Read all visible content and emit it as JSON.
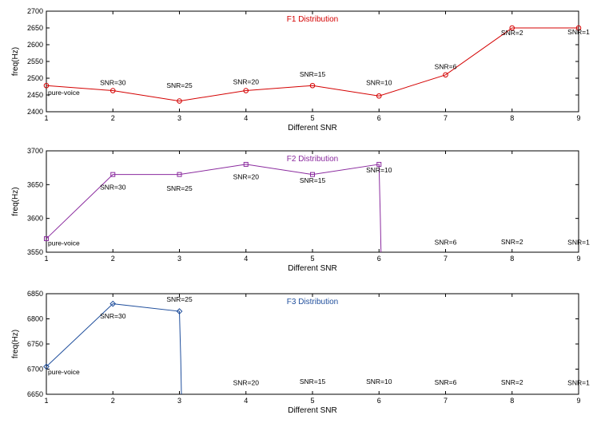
{
  "chart_data": [
    {
      "type": "line",
      "title": "F1 Distribution",
      "xlabel": "Different SNR",
      "ylabel": "freq(Hz)",
      "color": "#d40000",
      "marker": "circle",
      "xlim": [
        1,
        9
      ],
      "ylim": [
        2400,
        2700
      ],
      "xticks": [
        1,
        2,
        3,
        4,
        5,
        6,
        7,
        8,
        9
      ],
      "yticks": [
        2400,
        2450,
        2500,
        2550,
        2600,
        2650,
        2700
      ],
      "x": [
        1,
        2,
        3,
        4,
        5,
        6,
        7,
        8,
        9
      ],
      "y": [
        2478,
        2463,
        2432,
        2463,
        2478,
        2447,
        2510,
        2650,
        2650
      ],
      "annotations": [
        {
          "x": 1,
          "y": 2450,
          "text": "pure-voice"
        },
        {
          "x": 2,
          "y": 2480,
          "text": "SNR=30"
        },
        {
          "x": 3,
          "y": 2472,
          "text": "SNR=25"
        },
        {
          "x": 4,
          "y": 2482,
          "text": "SNR=20"
        },
        {
          "x": 5,
          "y": 2505,
          "text": "SNR=15"
        },
        {
          "x": 6,
          "y": 2480,
          "text": "SNR=10"
        },
        {
          "x": 7,
          "y": 2527,
          "text": "SNR=6"
        },
        {
          "x": 8,
          "y": 2628,
          "text": "SNR=2"
        },
        {
          "x": 9,
          "y": 2631,
          "text": "SNR=1"
        }
      ]
    },
    {
      "type": "line",
      "title": "F2 Distribution",
      "xlabel": "Different SNR",
      "ylabel": "freq(Hz)",
      "color": "#8a2a9e",
      "marker": "square",
      "xlim": [
        1,
        9
      ],
      "ylim": [
        3550,
        3700
      ],
      "xticks": [
        1,
        2,
        3,
        4,
        5,
        6,
        7,
        8,
        9
      ],
      "yticks": [
        3550,
        3600,
        3650,
        3700
      ],
      "x": [
        1,
        2,
        3,
        4,
        5,
        6,
        6.02,
        6.03
      ],
      "y": [
        3570,
        3665,
        3665,
        3680,
        3665,
        3680,
        3600,
        3550
      ],
      "annotations": [
        {
          "x": 1,
          "y": 3560,
          "text": "pure-voice"
        },
        {
          "x": 2,
          "y": 3643,
          "text": "SNR=30"
        },
        {
          "x": 3,
          "y": 3641,
          "text": "SNR=25"
        },
        {
          "x": 4,
          "y": 3658,
          "text": "SNR=20"
        },
        {
          "x": 5,
          "y": 3653,
          "text": "SNR=15"
        },
        {
          "x": 6,
          "y": 3668,
          "text": "SNR=10"
        },
        {
          "x": 7,
          "y": 3561,
          "text": "SNR=6"
        },
        {
          "x": 8,
          "y": 3562,
          "text": "SNR=2"
        },
        {
          "x": 9,
          "y": 3561,
          "text": "SNR=1"
        }
      ]
    },
    {
      "type": "line",
      "title": "F3 Distribution",
      "xlabel": "Different SNR",
      "ylabel": "freq(Hz)",
      "color": "#1f4e9c",
      "marker": "diamond",
      "xlim": [
        1,
        9
      ],
      "ylim": [
        6650,
        6850
      ],
      "xticks": [
        1,
        2,
        3,
        4,
        5,
        6,
        7,
        8,
        9
      ],
      "yticks": [
        6650,
        6700,
        6750,
        6800,
        6850
      ],
      "x": [
        1,
        2,
        3,
        3.02,
        3.03
      ],
      "y": [
        6705,
        6830,
        6815,
        6720,
        6650
      ],
      "annotations": [
        {
          "x": 1,
          "y": 6690,
          "text": "pure-voice"
        },
        {
          "x": 2,
          "y": 6801,
          "text": "SNR=30"
        },
        {
          "x": 3,
          "y": 6834,
          "text": "SNR=25"
        },
        {
          "x": 4,
          "y": 6668,
          "text": "SNR=20"
        },
        {
          "x": 5,
          "y": 6671,
          "text": "SNR=15"
        },
        {
          "x": 6,
          "y": 6671,
          "text": "SNR=10"
        },
        {
          "x": 7,
          "y": 6669,
          "text": "SNR=6"
        },
        {
          "x": 8,
          "y": 6669,
          "text": "SNR=2"
        },
        {
          "x": 9,
          "y": 6668,
          "text": "SNR=1"
        }
      ]
    }
  ]
}
